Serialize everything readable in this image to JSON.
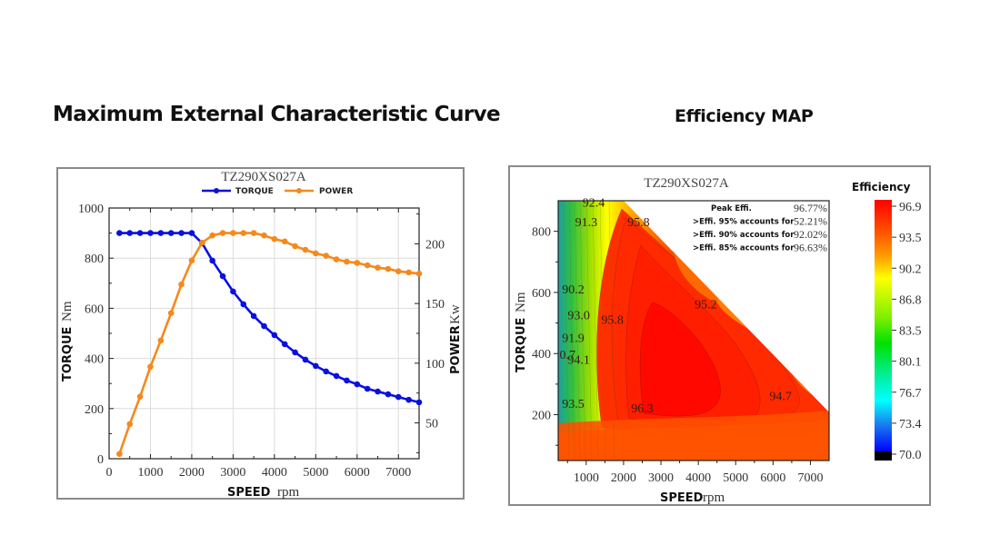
{
  "headings": {
    "left": "Maximum External Characteristic Curve",
    "right": "Efficiency MAP"
  },
  "chart_data": [
    {
      "type": "line",
      "title": "TZ290XS027A",
      "xlabel": "SPEED",
      "xlabel_unit": "rpm",
      "ylabel": "TORQUE",
      "ylabel_unit": "Nm",
      "y2label": "POWER",
      "y2label_unit": "Kw",
      "xlim": [
        0,
        7500
      ],
      "ylim": [
        0,
        1000
      ],
      "y2lim": [
        20,
        230
      ],
      "x_ticks": [
        0,
        1000,
        2000,
        3000,
        4000,
        5000,
        6000,
        7000
      ],
      "y_ticks": [
        0,
        200,
        400,
        600,
        800,
        1000
      ],
      "y2_ticks": [
        50,
        100,
        150,
        200
      ],
      "grid": true,
      "legend": "top-center",
      "x": [
        250,
        500,
        750,
        1000,
        1250,
        1500,
        1750,
        2000,
        2250,
        2500,
        2750,
        3000,
        3250,
        3500,
        3750,
        4000,
        4250,
        4500,
        4750,
        5000,
        5250,
        5500,
        5750,
        6000,
        6250,
        6500,
        6750,
        7000,
        7250,
        7500
      ],
      "series": [
        {
          "name": "TORQUE",
          "axis": "left",
          "color": "#0a10e0",
          "values": [
            900,
            900,
            900,
            900,
            900,
            900,
            900,
            900,
            860,
            790,
            728,
            667,
            616,
            569,
            529,
            493,
            457,
            424,
            395,
            370,
            348,
            330,
            312,
            297,
            279,
            268,
            257,
            246,
            235,
            225
          ]
        },
        {
          "name": "POWER",
          "axis": "right",
          "color": "#f5891c",
          "values": [
            24,
            49,
            72,
            97,
            119,
            142,
            166,
            186,
            201,
            207,
            209,
            209,
            209,
            209,
            207,
            204,
            202,
            198,
            195,
            192,
            190,
            187,
            185,
            184,
            182,
            180,
            179,
            177,
            176,
            175
          ]
        }
      ]
    },
    {
      "type": "heatmap",
      "title": "TZ290XS027A",
      "xlabel": "SPEED",
      "xlabel_unit": "rpm",
      "ylabel": "TORQUE",
      "ylabel_unit": "Nm",
      "xlim": [
        250,
        7500
      ],
      "ylim": [
        50,
        900
      ],
      "x_ticks": [
        1000,
        2000,
        3000,
        4000,
        5000,
        6000,
        7000
      ],
      "y_ticks": [
        200,
        400,
        600,
        800
      ],
      "contour_labels": [
        {
          "text": "92.4",
          "x": 1200,
          "y": 895
        },
        {
          "text": "91.3",
          "x": 1000,
          "y": 832
        },
        {
          "text": "95.8",
          "x": 2400,
          "y": 832
        },
        {
          "text": "90.2",
          "x": 650,
          "y": 612
        },
        {
          "text": "95.2",
          "x": 4200,
          "y": 562
        },
        {
          "text": "93.0",
          "x": 800,
          "y": 527
        },
        {
          "text": "95.8",
          "x": 1700,
          "y": 512
        },
        {
          "text": "91.9",
          "x": 650,
          "y": 452
        },
        {
          "text": "0.7",
          "x": 500,
          "y": 397
        },
        {
          "text": "94.1",
          "x": 800,
          "y": 382
        },
        {
          "text": "94.7",
          "x": 6200,
          "y": 262
        },
        {
          "text": "93.5",
          "x": 650,
          "y": 237
        },
        {
          "text": "96.3",
          "x": 2500,
          "y": 222
        }
      ],
      "stats": [
        {
          "label": "Peak Effi.",
          "value": "96.77%"
        },
        {
          "label": ">Effi. 95% accounts for",
          "value": "52.21%"
        },
        {
          "label": ">Effi. 90% accounts for",
          "value": "92.02%"
        },
        {
          "label": ">Effi. 85% accounts for",
          "value": "96.63%"
        }
      ],
      "colorbar": {
        "title": "Efficiency",
        "min": 70.0,
        "max": 96.9,
        "ticks": [
          "96.9",
          "93.5",
          "90.2",
          "86.8",
          "83.5",
          "80.1",
          "76.7",
          "73.4",
          "70.0"
        ],
        "colors": [
          "#ff0000",
          "#ff6a00",
          "#ffff00",
          "#9be80a",
          "#00e000",
          "#00f0a0",
          "#00ffff",
          "#1a80f0",
          "#0000ff",
          "#000000"
        ]
      }
    }
  ]
}
